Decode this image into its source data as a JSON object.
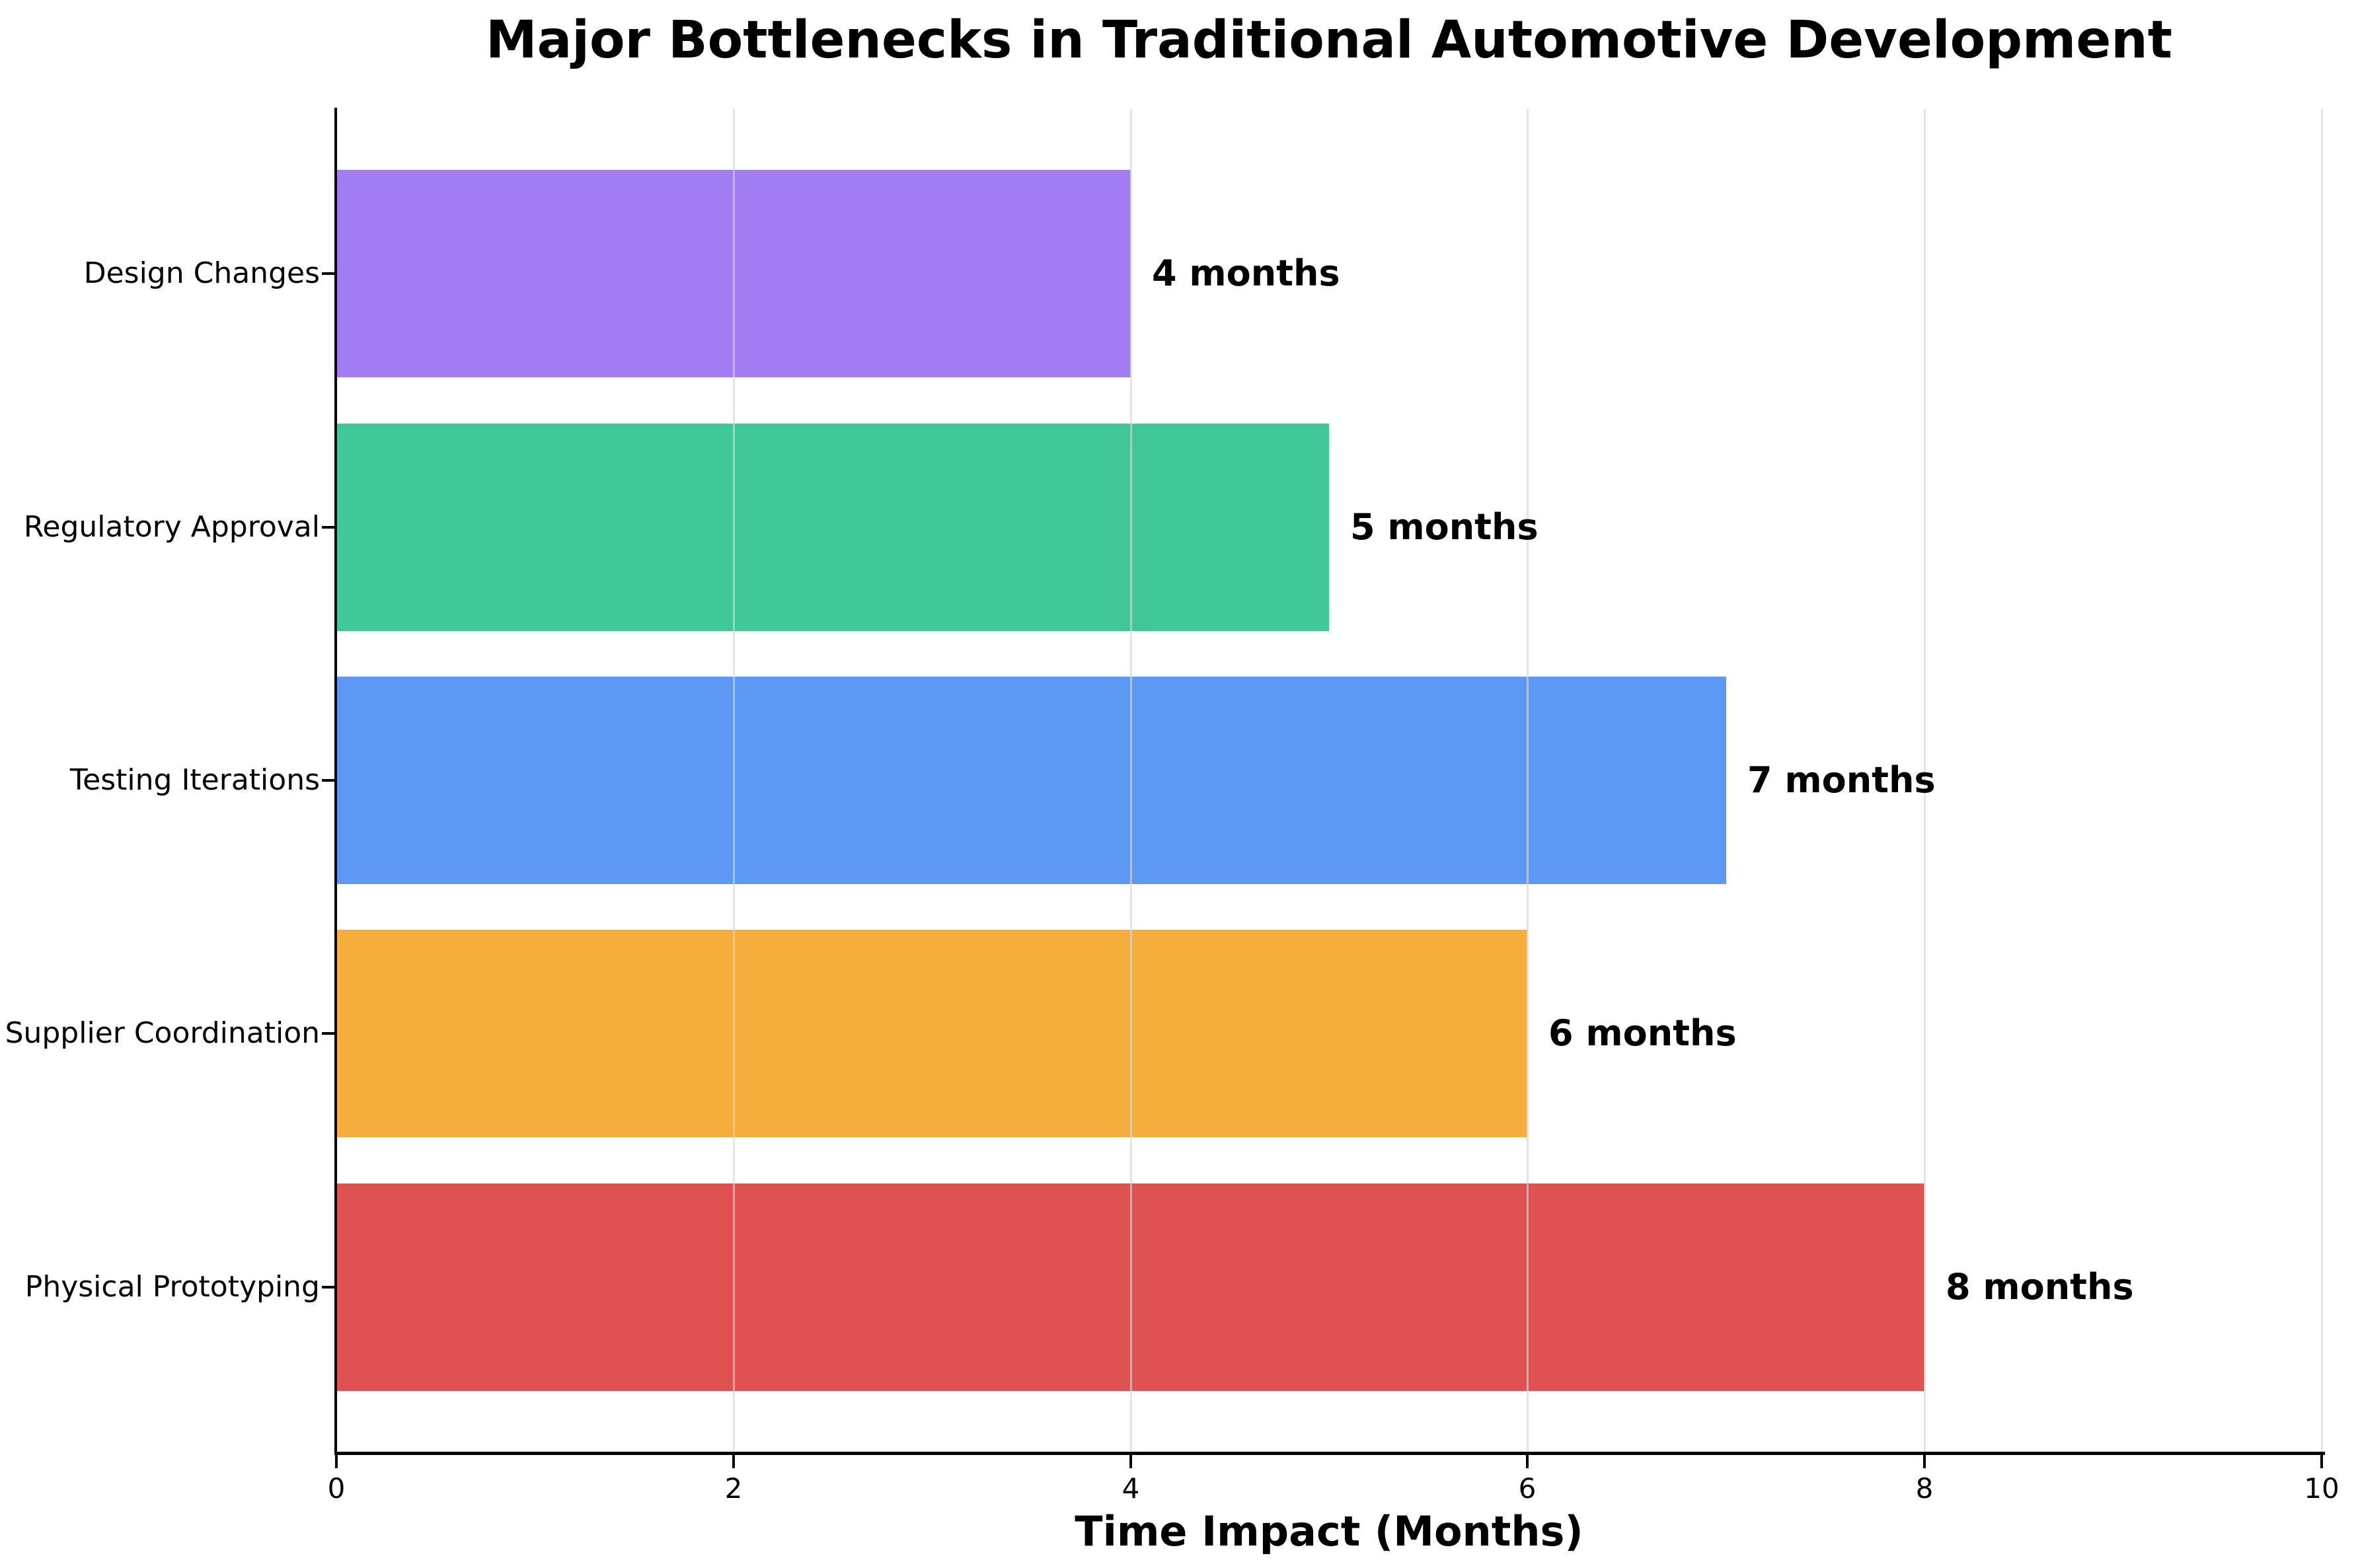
{
  "title": "Major Bottlenecks in Traditional Automotive Development",
  "chart_data": {
    "type": "bar",
    "orientation": "horizontal",
    "title": "Major Bottlenecks in Traditional Automotive Development",
    "xlabel": "Time Impact (Months)",
    "ylabel": "",
    "xlim": [
      0,
      10
    ],
    "xticks": [
      0,
      2,
      4,
      6,
      8,
      10
    ],
    "grid": "vertical-gridlines-on",
    "legend": "none",
    "categories": [
      "Design Changes",
      "Regulatory Approval",
      "Testing Iterations",
      "Supplier Coordination",
      "Physical Prototyping"
    ],
    "values": [
      4,
      5,
      7,
      6,
      8
    ],
    "value_labels": [
      "4 months",
      "5 months",
      "7 months",
      "6 months",
      "8 months"
    ],
    "bar_colors": [
      "#a27df2",
      "#3fc796",
      "#5e98f5",
      "#f5ae3c",
      "#e05252"
    ],
    "gridline_color": "#d7d7d7",
    "text_color": "#000000",
    "background_color": "#ffffff"
  }
}
